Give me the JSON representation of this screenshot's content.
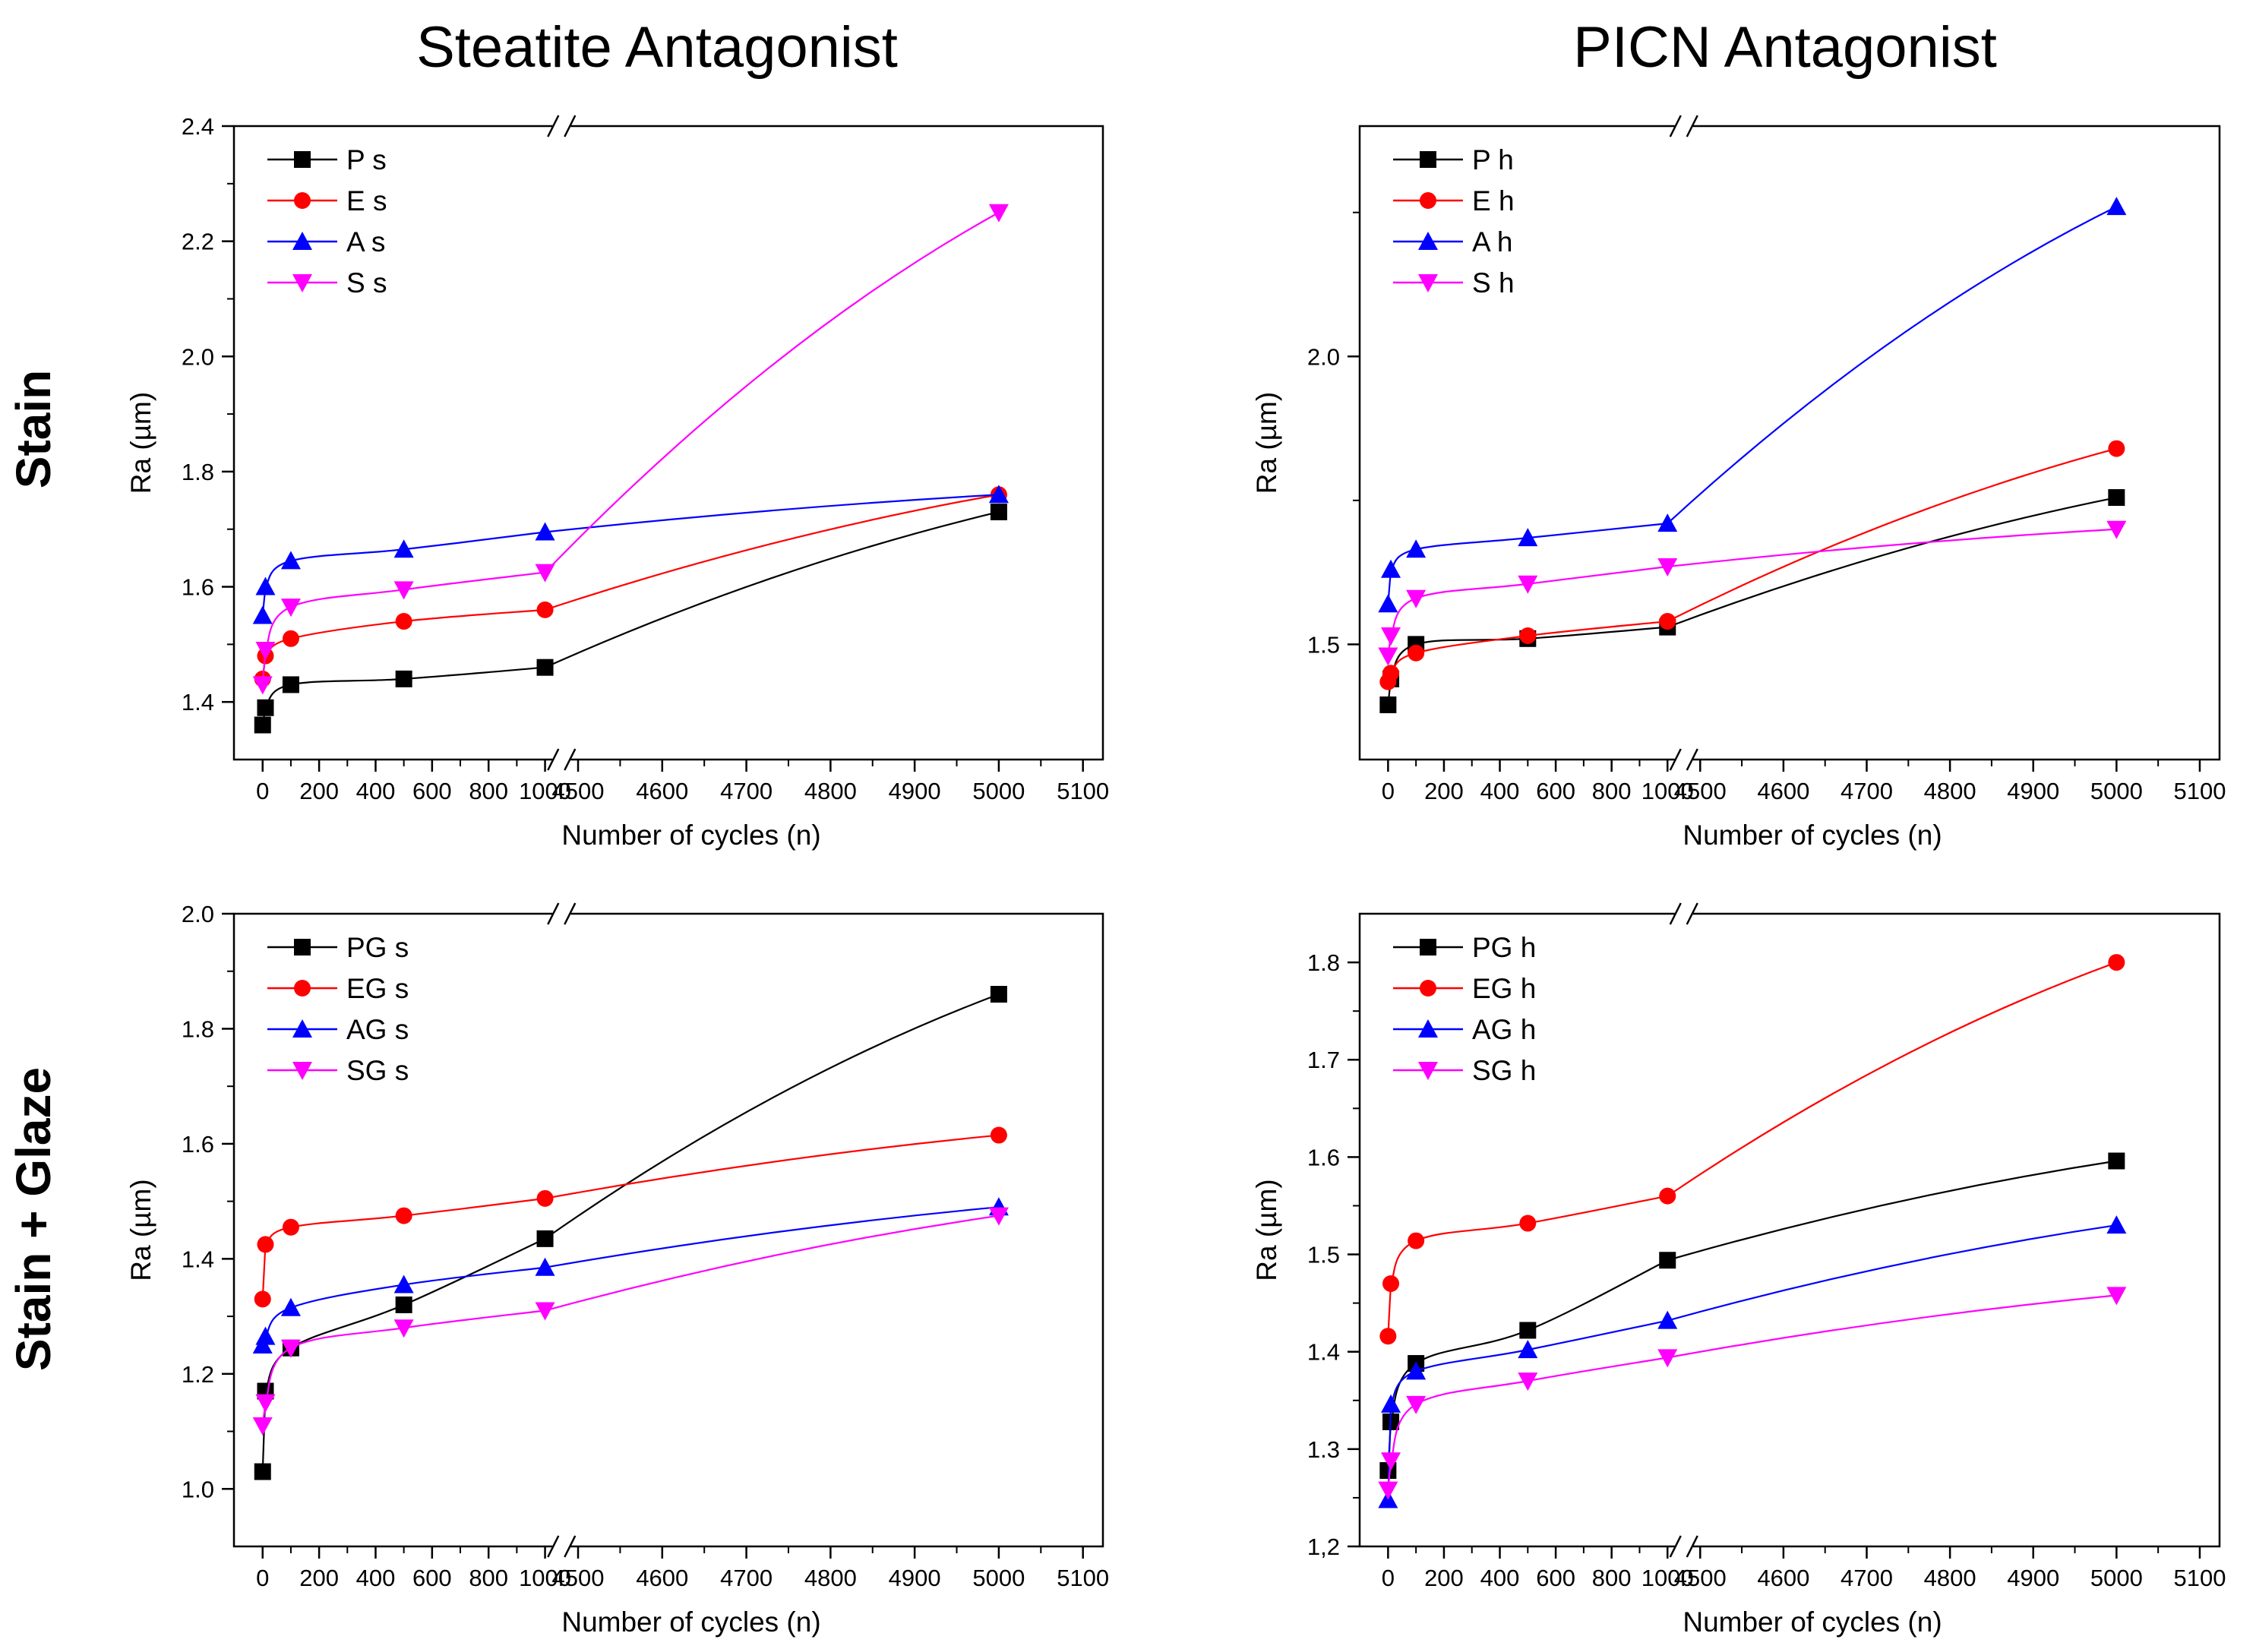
{
  "figure": {
    "col_titles": [
      "Steatite Antagonist",
      "PICN Antagonist"
    ],
    "row_titles": [
      "Stain",
      "Stain + Glaze"
    ]
  },
  "chart_data": [
    {
      "type": "line",
      "panel": "Stain / Steatite Antagonist",
      "xlabel": "Number of cycles (n)",
      "ylabel": "Ra (µm)",
      "x_ticks_left": [
        "0",
        "200",
        "400",
        "600",
        "800",
        "1000"
      ],
      "x_ticks_right": [
        "4500",
        "4600",
        "4700",
        "4800",
        "4900",
        "5000",
        "5100"
      ],
      "y_ticks": [
        "1.4",
        "1.6",
        "1.8",
        "2.0",
        "2.2",
        "2.4"
      ],
      "ylim": [
        1.3,
        2.4
      ],
      "legend_position": "top-left",
      "x": [
        0,
        10,
        100,
        500,
        1000,
        5000
      ],
      "series": [
        {
          "name": "P s",
          "color": "#000000",
          "marker": "square",
          "values": [
            1.36,
            1.39,
            1.43,
            1.44,
            1.46,
            1.73
          ]
        },
        {
          "name": "E s",
          "color": "#ff0000",
          "marker": "circle",
          "values": [
            1.44,
            1.48,
            1.51,
            1.54,
            1.56,
            1.76
          ]
        },
        {
          "name": "A s",
          "color": "#0000ff",
          "marker": "triangle-up",
          "values": [
            1.55,
            1.6,
            1.645,
            1.665,
            1.695,
            1.76
          ]
        },
        {
          "name": "S s",
          "color": "#ff00ff",
          "marker": "triangle-down",
          "values": [
            1.43,
            1.49,
            1.565,
            1.595,
            1.625,
            2.25
          ]
        }
      ]
    },
    {
      "type": "line",
      "panel": "Stain / PICN Antagonist",
      "xlabel": "Number of cycles (n)",
      "ylabel": "Ra (µm)",
      "x_ticks_left": [
        "0",
        "200",
        "400",
        "600",
        "800",
        "1000"
      ],
      "x_ticks_right": [
        "4500",
        "4600",
        "4700",
        "4800",
        "4900",
        "5000",
        "5100"
      ],
      "y_ticks": [
        "1.5",
        "2.0"
      ],
      "ylim": [
        1.3,
        2.4
      ],
      "legend_position": "top-left",
      "x": [
        0,
        10,
        100,
        500,
        1000,
        5000
      ],
      "series": [
        {
          "name": "P h",
          "color": "#000000",
          "marker": "square",
          "values": [
            1.395,
            1.44,
            1.5,
            1.51,
            1.53,
            1.755
          ]
        },
        {
          "name": "E h",
          "color": "#ff0000",
          "marker": "circle",
          "values": [
            1.435,
            1.45,
            1.485,
            1.515,
            1.54,
            1.84
          ]
        },
        {
          "name": "A h",
          "color": "#0000ff",
          "marker": "triangle-up",
          "values": [
            1.57,
            1.63,
            1.665,
            1.685,
            1.71,
            2.26
          ]
        },
        {
          "name": "S h",
          "color": "#ff00ff",
          "marker": "triangle-down",
          "values": [
            1.48,
            1.515,
            1.58,
            1.605,
            1.635,
            1.7
          ]
        }
      ]
    },
    {
      "type": "line",
      "panel": "Stain + Glaze / Steatite Antagonist",
      "xlabel": "Number of cycles (n)",
      "ylabel": "Ra (µm)",
      "x_ticks_left": [
        "0",
        "200",
        "400",
        "600",
        "800",
        "1000"
      ],
      "x_ticks_right": [
        "4500",
        "4600",
        "4700",
        "4800",
        "4900",
        "5000",
        "5100"
      ],
      "y_ticks": [
        "1.0",
        "1.2",
        "1.4",
        "1.6",
        "1.8",
        "2.0"
      ],
      "ylim": [
        0.9,
        2.0
      ],
      "legend_position": "top-left",
      "x": [
        0,
        10,
        100,
        500,
        1000,
        5000
      ],
      "series": [
        {
          "name": "PG s",
          "color": "#000000",
          "marker": "square",
          "values": [
            1.03,
            1.17,
            1.245,
            1.32,
            1.435,
            1.86
          ]
        },
        {
          "name": "EG s",
          "color": "#ff0000",
          "marker": "circle",
          "values": [
            1.33,
            1.425,
            1.455,
            1.475,
            1.505,
            1.615
          ]
        },
        {
          "name": "AG s",
          "color": "#0000ff",
          "marker": "triangle-up",
          "values": [
            1.25,
            1.265,
            1.315,
            1.355,
            1.385,
            1.49
          ]
        },
        {
          "name": "SG s",
          "color": "#ff00ff",
          "marker": "triangle-down",
          "values": [
            1.11,
            1.15,
            1.245,
            1.28,
            1.31,
            1.475
          ]
        }
      ]
    },
    {
      "type": "line",
      "panel": "Stain + Glaze / PICN Antagonist",
      "xlabel": "Number of cycles (n)",
      "ylabel": "Ra (µm)",
      "x_ticks_left": [
        "0",
        "200",
        "400",
        "600",
        "800",
        "1000"
      ],
      "x_ticks_right": [
        "4500",
        "4600",
        "4700",
        "4800",
        "4900",
        "5000",
        "5100"
      ],
      "y_ticks": [
        "1,2",
        "1.3",
        "1.4",
        "1.5",
        "1.6",
        "1.7",
        "1.8"
      ],
      "ylim": [
        1.2,
        1.85
      ],
      "legend_position": "top-left",
      "x": [
        0,
        10,
        100,
        500,
        1000,
        5000
      ],
      "series": [
        {
          "name": "PG h",
          "color": "#000000",
          "marker": "square",
          "values": [
            1.278,
            1.328,
            1.388,
            1.422,
            1.494,
            1.596
          ]
        },
        {
          "name": "EG h",
          "color": "#ff0000",
          "marker": "circle",
          "values": [
            1.416,
            1.47,
            1.514,
            1.532,
            1.56,
            1.8
          ]
        },
        {
          "name": "AG h",
          "color": "#0000ff",
          "marker": "triangle-up",
          "values": [
            1.248,
            1.346,
            1.38,
            1.402,
            1.432,
            1.53
          ]
        },
        {
          "name": "SG h",
          "color": "#ff00ff",
          "marker": "triangle-down",
          "values": [
            1.258,
            1.288,
            1.346,
            1.37,
            1.394,
            1.458
          ]
        }
      ]
    }
  ]
}
